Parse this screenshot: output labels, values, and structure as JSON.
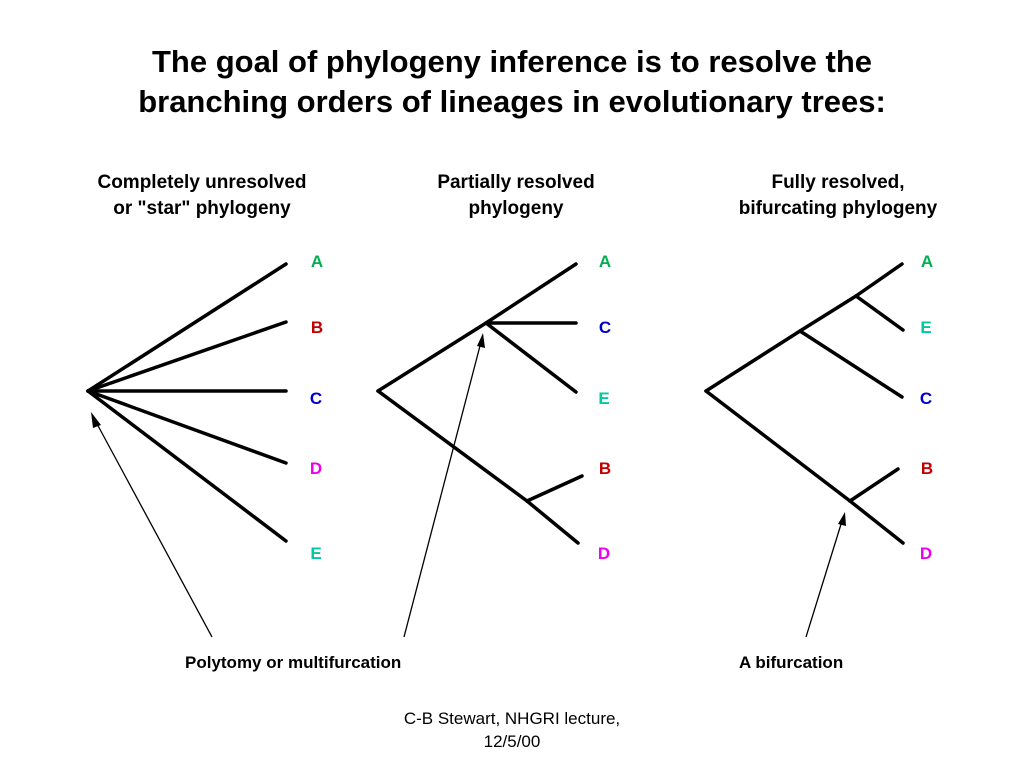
{
  "title": {
    "line1": "The goal of phylogeny inference is to resolve the",
    "line2": "branching orders of lineages in evolutionary trees:"
  },
  "trees": [
    {
      "heading_line1": "Completely unresolved",
      "heading_line2": "or \"star\" phylogeny",
      "leaves": [
        "A",
        "B",
        "C",
        "D",
        "E"
      ]
    },
    {
      "heading_line1": "Partially resolved",
      "heading_line2": "phylogeny",
      "leaves": [
        "A",
        "C",
        "E",
        "B",
        "D"
      ]
    },
    {
      "heading_line1": "Fully resolved,",
      "heading_line2": "bifurcating phylogeny",
      "leaves": [
        "A",
        "E",
        "C",
        "B",
        "D"
      ]
    }
  ],
  "leaf_colors": {
    "A": "#00b050",
    "B": "#c00000",
    "C": "#0000cc",
    "D": "#ee00ee",
    "E": "#00c8a0"
  },
  "captions": {
    "polytomy": "Polytomy or multifurcation",
    "bifurcation": "A bifurcation"
  },
  "footer": {
    "line1": "C-B Stewart, NHGRI lecture,",
    "line2": "12/5/00"
  }
}
